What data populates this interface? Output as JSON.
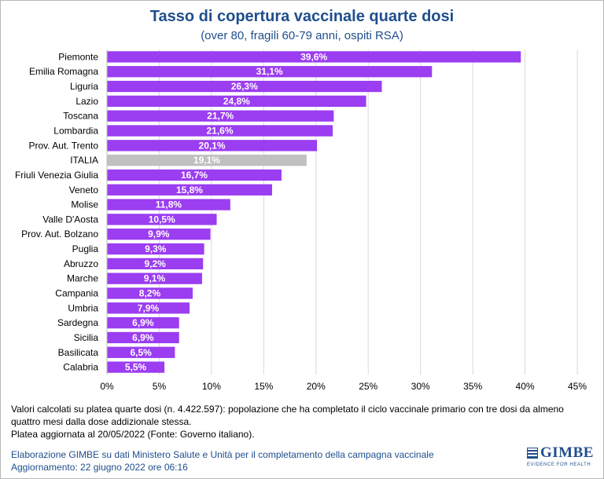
{
  "chart_data": {
    "type": "bar",
    "orientation": "horizontal",
    "title": "Tasso di copertura vaccinale quarte dosi",
    "subtitle": "(over 80, fragili 60-79 anni, ospiti RSA)",
    "categories": [
      "Piemonte",
      "Emilia Romagna",
      "Liguria",
      "Lazio",
      "Toscana",
      "Lombardia",
      "Prov. Aut. Trento",
      "ITALIA",
      "Friuli Venezia Giulia",
      "Veneto",
      "Molise",
      "Valle D'Aosta",
      "Prov. Aut. Bolzano",
      "Puglia",
      "Abruzzo",
      "Marche",
      "Campania",
      "Umbria",
      "Sardegna",
      "Sicilia",
      "Basilicata",
      "Calabria"
    ],
    "values": [
      39.6,
      31.1,
      26.3,
      24.8,
      21.7,
      21.6,
      20.1,
      19.1,
      16.7,
      15.8,
      11.8,
      10.5,
      9.9,
      9.3,
      9.2,
      9.1,
      8.2,
      7.9,
      6.9,
      6.9,
      6.5,
      5.5
    ],
    "value_labels": [
      "39,6%",
      "31,1%",
      "26,3%",
      "24,8%",
      "21,7%",
      "21,6%",
      "20,1%",
      "19,1%",
      "16,7%",
      "15,8%",
      "11,8%",
      "10,5%",
      "9,9%",
      "9,3%",
      "9,2%",
      "9,1%",
      "8,2%",
      "7,9%",
      "6,9%",
      "6,9%",
      "6,5%",
      "5,5%"
    ],
    "highlight_category": "ITALIA",
    "xlim": [
      0,
      45
    ],
    "x_ticks": [
      0,
      5,
      10,
      15,
      20,
      25,
      30,
      35,
      40,
      45
    ],
    "x_tick_labels": [
      "0%",
      "5%",
      "10%",
      "15%",
      "20%",
      "25%",
      "30%",
      "35%",
      "40%",
      "45%"
    ],
    "grid": true,
    "colors": {
      "bar": "#9b3df0",
      "highlight": "#c0c0c0",
      "grid": "#d9d9d9",
      "title": "#1f4e8c"
    }
  },
  "footnote": {
    "line1": "Valori calcolati su platea quarte dosi (n. 4.422.597): popolazione che ha completato il ciclo vaccinale primario con tre dosi da almeno quattro mesi dalla dose addizionale stessa.",
    "line2": "Platea aggiornata al 20/05/2022 (Fonte: Governo italiano)."
  },
  "source": {
    "line1": "Elaborazione GIMBE su dati Ministero Salute e Unità per il completamento della campagna vaccinale",
    "line2": "Aggiornamento: 22 giugno 2022 ore 06:16"
  },
  "logo": {
    "name": "GIMBE",
    "tagline": "EVIDENCE FOR HEALTH"
  }
}
